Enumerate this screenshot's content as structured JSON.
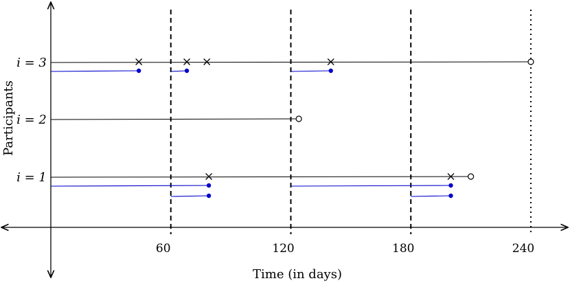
{
  "x_axis_label": "Time (in days)",
  "y_axis_label": "Participants",
  "x_ticks": [
    60,
    120,
    180,
    240
  ],
  "cutoffs_dashed": [
    60,
    120,
    180
  ],
  "cutoff_dotted": 240,
  "colors": {
    "axis": "#000000",
    "timeline": "#000000",
    "interval": "#0000cc"
  },
  "participants": [
    {
      "label": "i = 3",
      "end": 240,
      "events": [
        44,
        68,
        78,
        140
      ],
      "intervals": [
        [
          0,
          44
        ],
        [
          60,
          68
        ],
        [
          120,
          140
        ]
      ]
    },
    {
      "label": "i = 2",
      "end": 124,
      "events": [],
      "intervals": []
    },
    {
      "label": "i = 1",
      "end": 210,
      "events": [
        79,
        200
      ],
      "intervals": [
        [
          0,
          79
        ],
        [
          60,
          79
        ],
        [
          120,
          200
        ],
        [
          180,
          200
        ]
      ]
    }
  ]
}
